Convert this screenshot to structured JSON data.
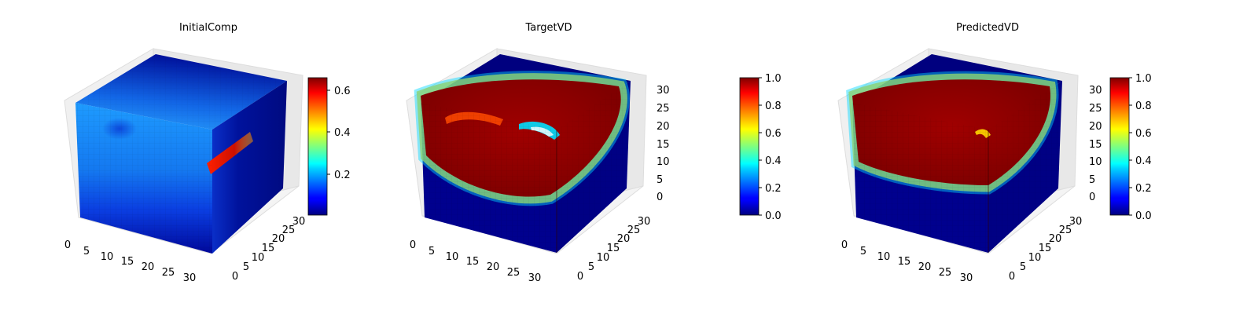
{
  "chart_data": [
    {
      "type": "heatmap",
      "title": "InitialComp",
      "axes": {
        "x": {
          "ticks": [
            "0",
            "5",
            "10",
            "15",
            "20",
            "25",
            "30"
          ],
          "range": [
            0,
            32
          ]
        },
        "y": {
          "ticks": [
            "0",
            "5",
            "10",
            "15",
            "20",
            "25",
            "30"
          ],
          "range": [
            0,
            32
          ]
        },
        "z": {
          "ticks": [],
          "range": [
            0,
            32
          ]
        }
      },
      "colorbar": {
        "colormap": "jet",
        "range": [
          0.02,
          0.66
        ],
        "ticks": [
          "0.2",
          "0.4",
          "0.6"
        ],
        "tick_values": [
          0.2,
          0.4,
          0.6
        ]
      },
      "faces": {
        "front": "mostly ~0.2-0.3 in the upper region, fading to ~0.05 at the bottom; a darker blob near upper-left",
        "top": "~0.2 near the front edge, falling to ~0.05 toward the back",
        "right": "mostly ~0.05 with an elongated hot streak (~0.65) near mid-height at the front edge"
      }
    },
    {
      "type": "heatmap",
      "title": "TargetVD",
      "axes": {
        "x": {
          "ticks": [
            "0",
            "5",
            "10",
            "15",
            "20",
            "25",
            "30"
          ],
          "range": [
            0,
            32
          ]
        },
        "y": {
          "ticks": [
            "0",
            "5",
            "10",
            "15",
            "20",
            "25",
            "30"
          ],
          "range": [
            0,
            32
          ]
        },
        "z": {
          "ticks": [
            "0",
            "5",
            "10",
            "15",
            "20",
            "25",
            "30"
          ],
          "range": [
            0,
            32
          ]
        }
      },
      "colorbar": {
        "colormap": "jet",
        "range": [
          0.0,
          1.0
        ],
        "ticks": [
          "0.0",
          "0.2",
          "0.4",
          "0.6",
          "0.8",
          "1.0"
        ],
        "tick_values": [
          0.0,
          0.2,
          0.4,
          0.6,
          0.8,
          1.0
        ]
      },
      "faces": {
        "front": "large region at 1.0 filling the upper part, bounded by a curved rainbow boundary; outside near 0.0",
        "top": "1.0 inside a rounded boundary, 0.0 toward the back corners",
        "right": "1.0 in the upper half with rounded boundary, 0.0 below"
      }
    },
    {
      "type": "heatmap",
      "title": "PredictedVD",
      "axes": {
        "x": {
          "ticks": [
            "0",
            "5",
            "10",
            "15",
            "20",
            "25",
            "30"
          ],
          "range": [
            0,
            32
          ]
        },
        "y": {
          "ticks": [
            "0",
            "5",
            "10",
            "15",
            "20",
            "25",
            "30"
          ],
          "range": [
            0,
            32
          ]
        },
        "z": {
          "ticks": [
            "0",
            "5",
            "10",
            "15",
            "20",
            "25",
            "30"
          ],
          "range": [
            0,
            32
          ]
        }
      },
      "colorbar": {
        "colormap": "jet",
        "range": [
          0.0,
          1.0
        ],
        "ticks": [
          "0.0",
          "0.2",
          "0.4",
          "0.6",
          "0.8",
          "1.0"
        ],
        "tick_values": [
          0.0,
          0.2,
          0.4,
          0.6,
          0.8,
          1.0
        ]
      },
      "faces": {
        "front": "large region at 1.0 filling the upper part, flatter lower boundary than TargetVD",
        "top": "1.0 inside a rounded boundary, 0.0 toward the back corners",
        "right": "1.0 in the upper half with rounded boundary, 0.0 below"
      }
    }
  ]
}
